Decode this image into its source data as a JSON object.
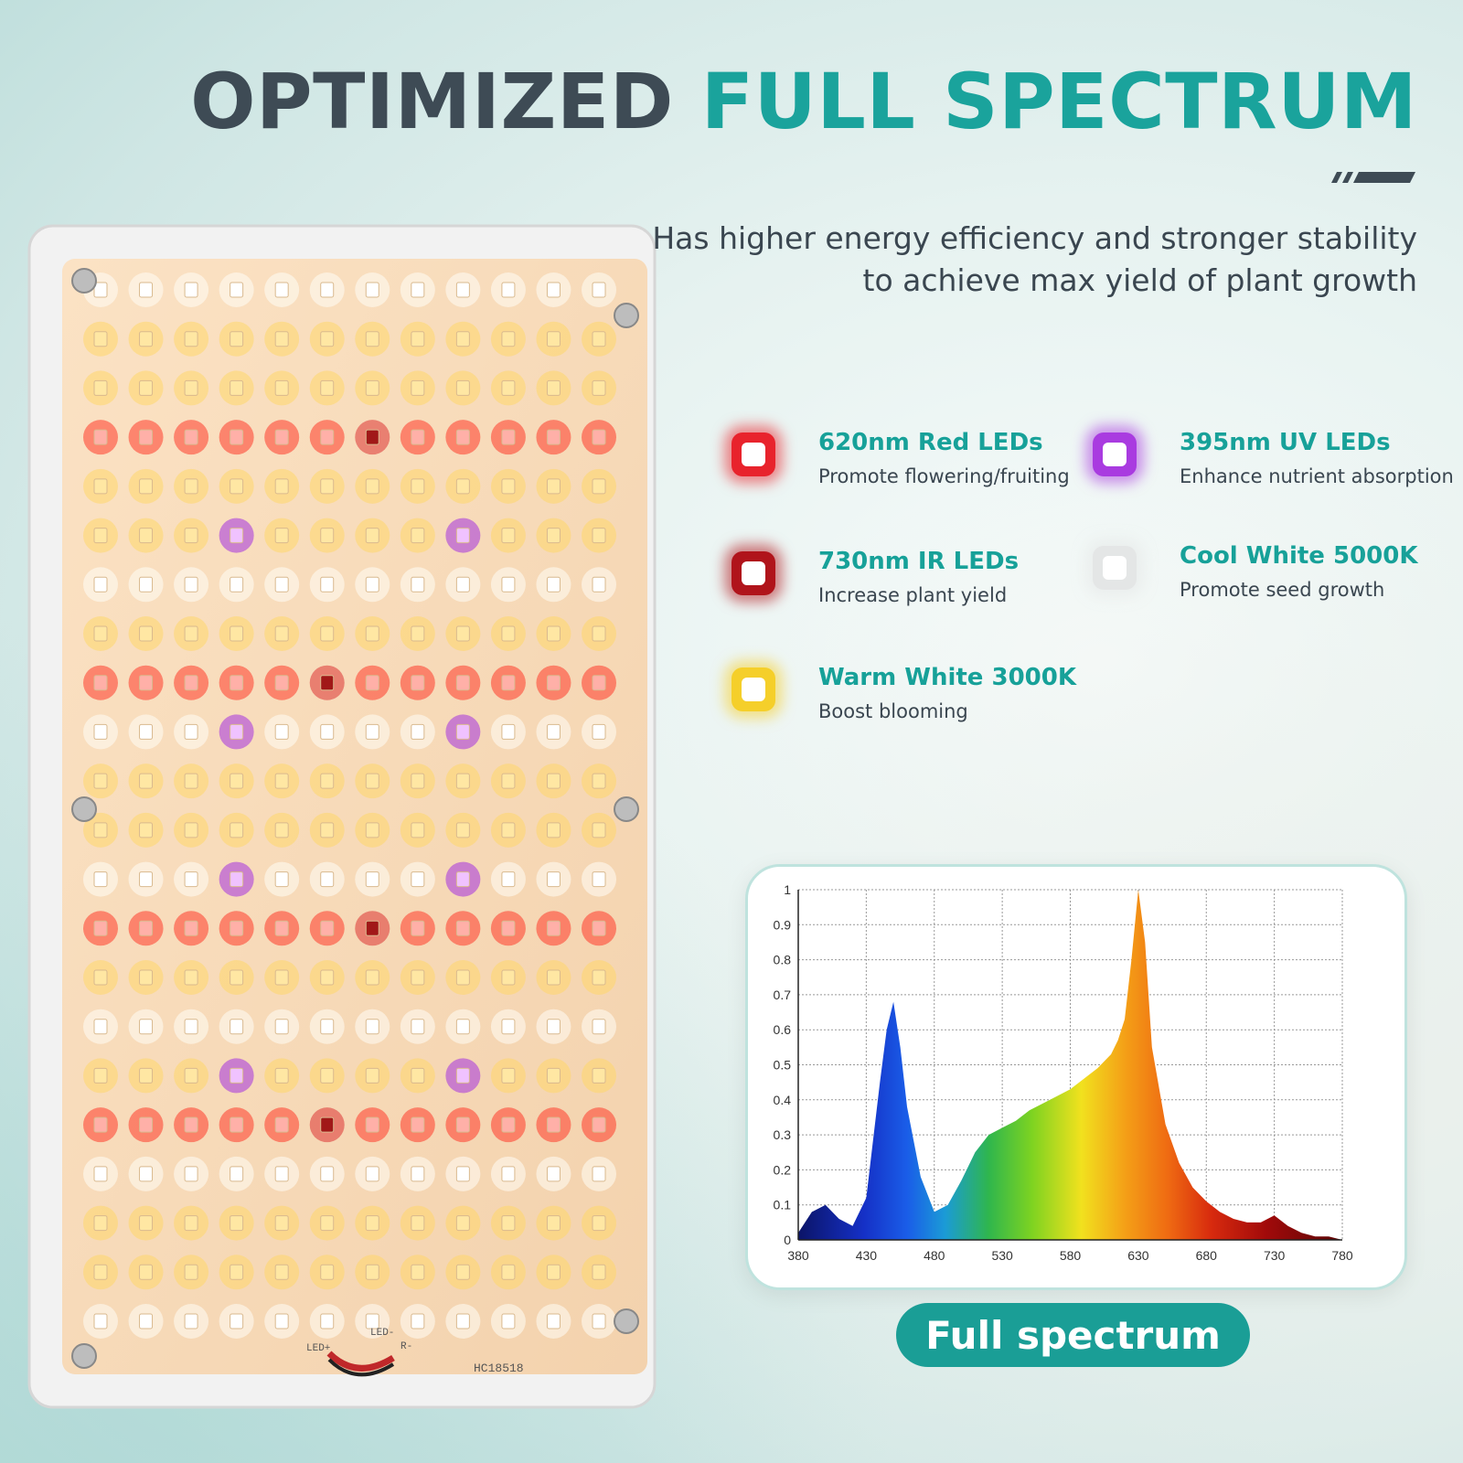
{
  "headline": {
    "part1": "OPTIMIZED",
    "part2": "FULL SPECTRUM"
  },
  "subtitle": {
    "line1": "Has higher energy efficiency and stronger stability",
    "line2": "to achieve max yield of plant growth"
  },
  "leds": [
    {
      "title": "620nm Red LEDs",
      "desc": "Promote flowering/fruiting",
      "color": "#e8232c"
    },
    {
      "title": "395nm UV LEDs",
      "desc": "Enhance nutrient absorption",
      "color": "#a93be0"
    },
    {
      "title": "730nm IR LEDs",
      "desc": "Increase plant yield",
      "color": "#b0141b"
    },
    {
      "title": "Cool White 5000K",
      "desc": "Promote seed growth",
      "color": "#e4e6e6"
    },
    {
      "title": "Warm White 3000K",
      "desc": "Boost blooming",
      "color": "#f5cf2a"
    }
  ],
  "panel": {
    "model": "HC18518",
    "connector_labels": [
      "LED+",
      "LED-",
      "R-"
    ],
    "row_codes": [
      "W",
      "Y",
      "R"
    ]
  },
  "colors": {
    "teal": "#1aa39c",
    "dark": "#3e4b55",
    "card_border": "#bfe3de"
  },
  "chart_data": {
    "type": "area",
    "x": [
      380,
      390,
      400,
      410,
      420,
      430,
      440,
      445,
      450,
      455,
      460,
      470,
      480,
      490,
      500,
      510,
      520,
      530,
      540,
      550,
      560,
      570,
      580,
      590,
      600,
      610,
      615,
      620,
      625,
      630,
      635,
      640,
      650,
      660,
      670,
      680,
      690,
      700,
      710,
      720,
      730,
      740,
      750,
      760,
      770,
      780
    ],
    "y": [
      0.02,
      0.08,
      0.1,
      0.06,
      0.04,
      0.12,
      0.45,
      0.6,
      0.68,
      0.55,
      0.38,
      0.18,
      0.08,
      0.1,
      0.17,
      0.25,
      0.3,
      0.32,
      0.34,
      0.37,
      0.39,
      0.41,
      0.43,
      0.46,
      0.49,
      0.53,
      0.57,
      0.63,
      0.8,
      1.0,
      0.85,
      0.55,
      0.33,
      0.22,
      0.15,
      0.11,
      0.08,
      0.06,
      0.05,
      0.05,
      0.07,
      0.04,
      0.02,
      0.01,
      0.01,
      0.0
    ],
    "xticks": [
      "380",
      "430",
      "480",
      "530",
      "580",
      "630",
      "680",
      "730",
      "780"
    ],
    "yticks": [
      "0",
      "0.1",
      "0.2",
      "0.3",
      "0.4",
      "0.5",
      "0.6",
      "0.7",
      "0.8",
      "0.9",
      "1"
    ],
    "xlim": [
      380,
      780
    ],
    "ylim": [
      0,
      1
    ],
    "grid": true,
    "label": "Full spectrum"
  }
}
